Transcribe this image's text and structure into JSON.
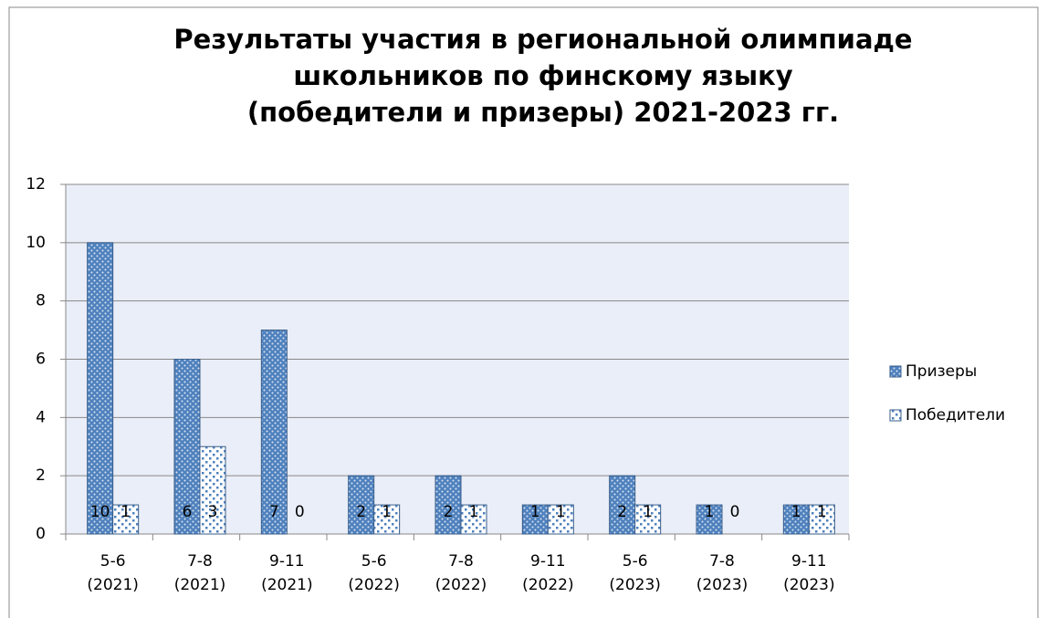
{
  "chart_data": {
    "type": "bar",
    "title": "Результаты участия в региональной олимпиаде\nшкольников по финскому языку\n(победители и призеры) 2021-2023 гг.",
    "categories": [
      "5-6 (2021)",
      "7-8 (2021)",
      "9-11 (2021)",
      "5-6 (2022)",
      "7-8 (2022)",
      "9-11 (2022)",
      "5-6 (2023)",
      "7-8 (2023)",
      "9-11 (2023)"
    ],
    "series": [
      {
        "name": "Призеры",
        "color": "#4f81bd",
        "values": [
          10,
          6,
          7,
          2,
          2,
          1,
          2,
          1,
          1
        ]
      },
      {
        "name": "Победители",
        "color": "#4f81bd",
        "values": [
          1,
          3,
          0,
          1,
          1,
          1,
          1,
          0,
          1
        ]
      }
    ],
    "ylim": [
      0,
      12
    ],
    "yticks": [
      0,
      2,
      4,
      6,
      8,
      10,
      12
    ],
    "grid": true,
    "legend": "right"
  }
}
